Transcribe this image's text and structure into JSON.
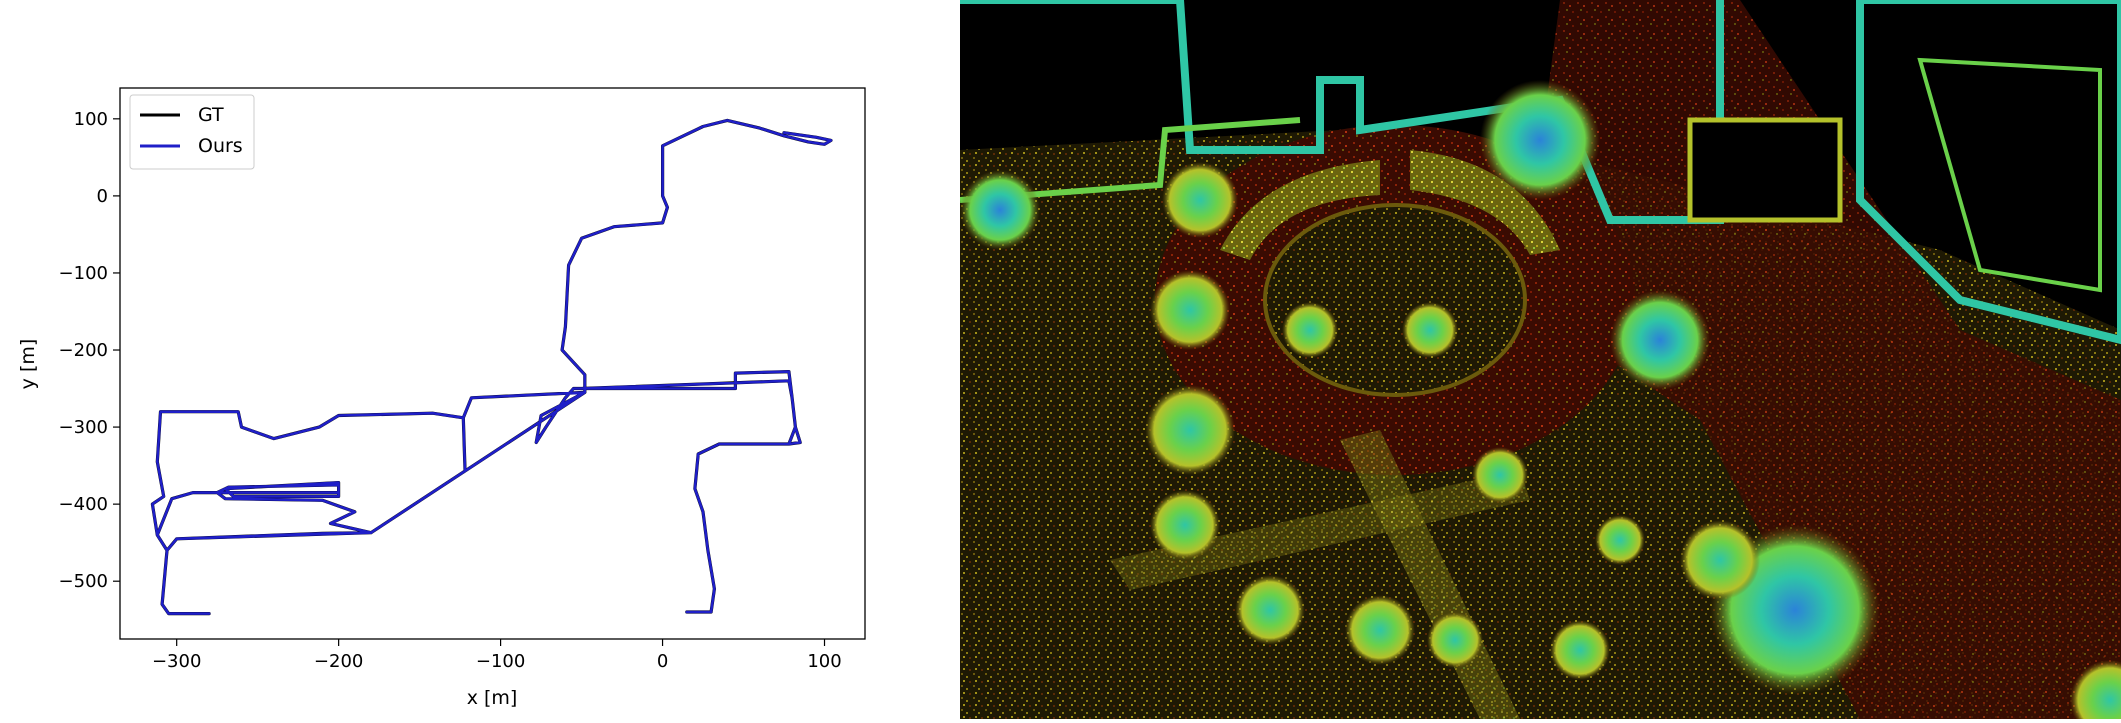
{
  "chart_data": {
    "type": "line",
    "title": "",
    "xlabel": "x [m]",
    "ylabel": "y [m]",
    "xlim": [
      -335,
      125
    ],
    "ylim": [
      -575,
      140
    ],
    "grid": false,
    "legend_position": "top-left",
    "x_ticks": [
      -300,
      -200,
      -100,
      0,
      100
    ],
    "x_tick_labels": [
      "−300",
      "−200",
      "−100",
      "0",
      "100"
    ],
    "y_ticks": [
      100,
      0,
      -100,
      -200,
      -300,
      -400,
      -500
    ],
    "y_tick_labels": [
      "100",
      "0",
      "−100",
      "−200",
      "−300",
      "−400",
      "−500"
    ],
    "series": [
      {
        "name": "GT",
        "color": "#000000",
        "points": [
          [
            75,
            82
          ],
          [
            95,
            76
          ],
          [
            104,
            72
          ],
          [
            100,
            67
          ],
          [
            90,
            70
          ],
          [
            75,
            78
          ],
          [
            60,
            88
          ],
          [
            40,
            98
          ],
          [
            25,
            90
          ],
          [
            10,
            75
          ],
          [
            0,
            65
          ],
          [
            0,
            0
          ],
          [
            3,
            -15
          ],
          [
            0,
            -35
          ],
          [
            -30,
            -40
          ],
          [
            -50,
            -55
          ],
          [
            -58,
            -90
          ],
          [
            -60,
            -170
          ],
          [
            -62,
            -200
          ],
          [
            -48,
            -232
          ],
          [
            -48,
            -255
          ],
          [
            -118,
            -262
          ],
          [
            -123,
            -288
          ],
          [
            -122,
            -355
          ],
          [
            -123,
            -288
          ],
          [
            -142,
            -282
          ],
          [
            -200,
            -285
          ],
          [
            -212,
            -300
          ],
          [
            -240,
            -315
          ],
          [
            -260,
            -300
          ],
          [
            -262,
            -280
          ],
          [
            -310,
            -280
          ],
          [
            -312,
            -345
          ],
          [
            -308,
            -390
          ],
          [
            -315,
            -400
          ],
          [
            -312,
            -440
          ],
          [
            -306,
            -460
          ],
          [
            -309,
            -530
          ],
          [
            -305,
            -542
          ],
          [
            -280,
            -542
          ],
          [
            -305,
            -542
          ],
          [
            -309,
            -530
          ],
          [
            -306,
            -460
          ],
          [
            -300,
            -445
          ],
          [
            -210,
            -438
          ],
          [
            -180,
            -437
          ],
          [
            -205,
            -425
          ],
          [
            -190,
            -410
          ],
          [
            -210,
            -395
          ],
          [
            -270,
            -393
          ],
          [
            -275,
            -385
          ],
          [
            -268,
            -378
          ],
          [
            -200,
            -375
          ],
          [
            -200,
            -390
          ],
          [
            -265,
            -390
          ],
          [
            -270,
            -380
          ],
          [
            -200,
            -372
          ],
          [
            -200,
            -385
          ],
          [
            -290,
            -385
          ],
          [
            -303,
            -393
          ],
          [
            -312,
            -440
          ],
          [
            -306,
            -460
          ],
          [
            -300,
            -445
          ],
          [
            -195,
            -438
          ],
          [
            -180,
            -437
          ],
          [
            -48,
            -255
          ],
          [
            -75,
            -285
          ],
          [
            -78,
            -320
          ],
          [
            -72,
            -300
          ],
          [
            -60,
            -262
          ],
          [
            -55,
            -250
          ],
          [
            45,
            -250
          ],
          [
            45,
            -230
          ],
          [
            78,
            -228
          ],
          [
            80,
            -262
          ],
          [
            82,
            -300
          ],
          [
            85,
            -320
          ],
          [
            78,
            -322
          ],
          [
            35,
            -322
          ],
          [
            22,
            -335
          ],
          [
            20,
            -380
          ],
          [
            25,
            -410
          ],
          [
            28,
            -460
          ],
          [
            32,
            -510
          ],
          [
            30,
            -540
          ],
          [
            15,
            -540
          ],
          [
            30,
            -540
          ],
          [
            32,
            -510
          ],
          [
            28,
            -460
          ],
          [
            25,
            -410
          ],
          [
            20,
            -380
          ],
          [
            22,
            -335
          ],
          [
            35,
            -322
          ],
          [
            78,
            -322
          ],
          [
            82,
            -300
          ],
          [
            80,
            -262
          ],
          [
            78,
            -240
          ],
          [
            -50,
            -250
          ]
        ]
      },
      {
        "name": "Ours",
        "color": "#1f1fc8",
        "points": [
          [
            75,
            82
          ],
          [
            95,
            76
          ],
          [
            104,
            72
          ],
          [
            100,
            67
          ],
          [
            90,
            70
          ],
          [
            75,
            78
          ],
          [
            60,
            88
          ],
          [
            40,
            98
          ],
          [
            25,
            90
          ],
          [
            10,
            75
          ],
          [
            0,
            65
          ],
          [
            0,
            0
          ],
          [
            3,
            -15
          ],
          [
            0,
            -35
          ],
          [
            -30,
            -40
          ],
          [
            -50,
            -55
          ],
          [
            -58,
            -90
          ],
          [
            -60,
            -170
          ],
          [
            -62,
            -200
          ],
          [
            -48,
            -232
          ],
          [
            -48,
            -255
          ],
          [
            -118,
            -262
          ],
          [
            -123,
            -288
          ],
          [
            -122,
            -355
          ],
          [
            -123,
            -288
          ],
          [
            -142,
            -282
          ],
          [
            -200,
            -285
          ],
          [
            -212,
            -300
          ],
          [
            -240,
            -315
          ],
          [
            -260,
            -300
          ],
          [
            -262,
            -280
          ],
          [
            -310,
            -280
          ],
          [
            -312,
            -345
          ],
          [
            -308,
            -390
          ],
          [
            -315,
            -400
          ],
          [
            -312,
            -440
          ],
          [
            -306,
            -460
          ],
          [
            -309,
            -530
          ],
          [
            -305,
            -542
          ],
          [
            -280,
            -542
          ],
          [
            -305,
            -542
          ],
          [
            -309,
            -530
          ],
          [
            -306,
            -460
          ],
          [
            -300,
            -445
          ],
          [
            -210,
            -438
          ],
          [
            -180,
            -437
          ],
          [
            -205,
            -425
          ],
          [
            -190,
            -410
          ],
          [
            -210,
            -395
          ],
          [
            -270,
            -393
          ],
          [
            -275,
            -385
          ],
          [
            -268,
            -378
          ],
          [
            -200,
            -375
          ],
          [
            -200,
            -390
          ],
          [
            -265,
            -390
          ],
          [
            -270,
            -380
          ],
          [
            -200,
            -372
          ],
          [
            -200,
            -385
          ],
          [
            -290,
            -385
          ],
          [
            -303,
            -393
          ],
          [
            -312,
            -440
          ],
          [
            -306,
            -460
          ],
          [
            -300,
            -445
          ],
          [
            -195,
            -438
          ],
          [
            -180,
            -437
          ],
          [
            -48,
            -255
          ],
          [
            -75,
            -285
          ],
          [
            -78,
            -320
          ],
          [
            -72,
            -300
          ],
          [
            -60,
            -262
          ],
          [
            -55,
            -250
          ],
          [
            45,
            -250
          ],
          [
            45,
            -230
          ],
          [
            78,
            -228
          ],
          [
            80,
            -262
          ],
          [
            82,
            -300
          ],
          [
            85,
            -320
          ],
          [
            78,
            -322
          ],
          [
            35,
            -322
          ],
          [
            22,
            -335
          ],
          [
            20,
            -380
          ],
          [
            25,
            -410
          ],
          [
            28,
            -460
          ],
          [
            32,
            -510
          ],
          [
            30,
            -540
          ],
          [
            15,
            -540
          ],
          [
            30,
            -540
          ],
          [
            32,
            -510
          ],
          [
            28,
            -460
          ],
          [
            25,
            -410
          ],
          [
            20,
            -380
          ],
          [
            22,
            -335
          ],
          [
            35,
            -322
          ],
          [
            78,
            -322
          ],
          [
            82,
            -300
          ],
          [
            80,
            -262
          ],
          [
            78,
            -240
          ],
          [
            -50,
            -250
          ]
        ]
      }
    ]
  },
  "point_cloud": {
    "background": "#000000",
    "palette": [
      "#3a0800",
      "#7a1a05",
      "#a82a0a",
      "#6b5a0c",
      "#b5a51a",
      "#d8d43a",
      "#6ad14a",
      "#2fc6a5",
      "#2b83d8",
      "#5e35c9"
    ],
    "description_icon": "lidar-point-cloud-image"
  }
}
